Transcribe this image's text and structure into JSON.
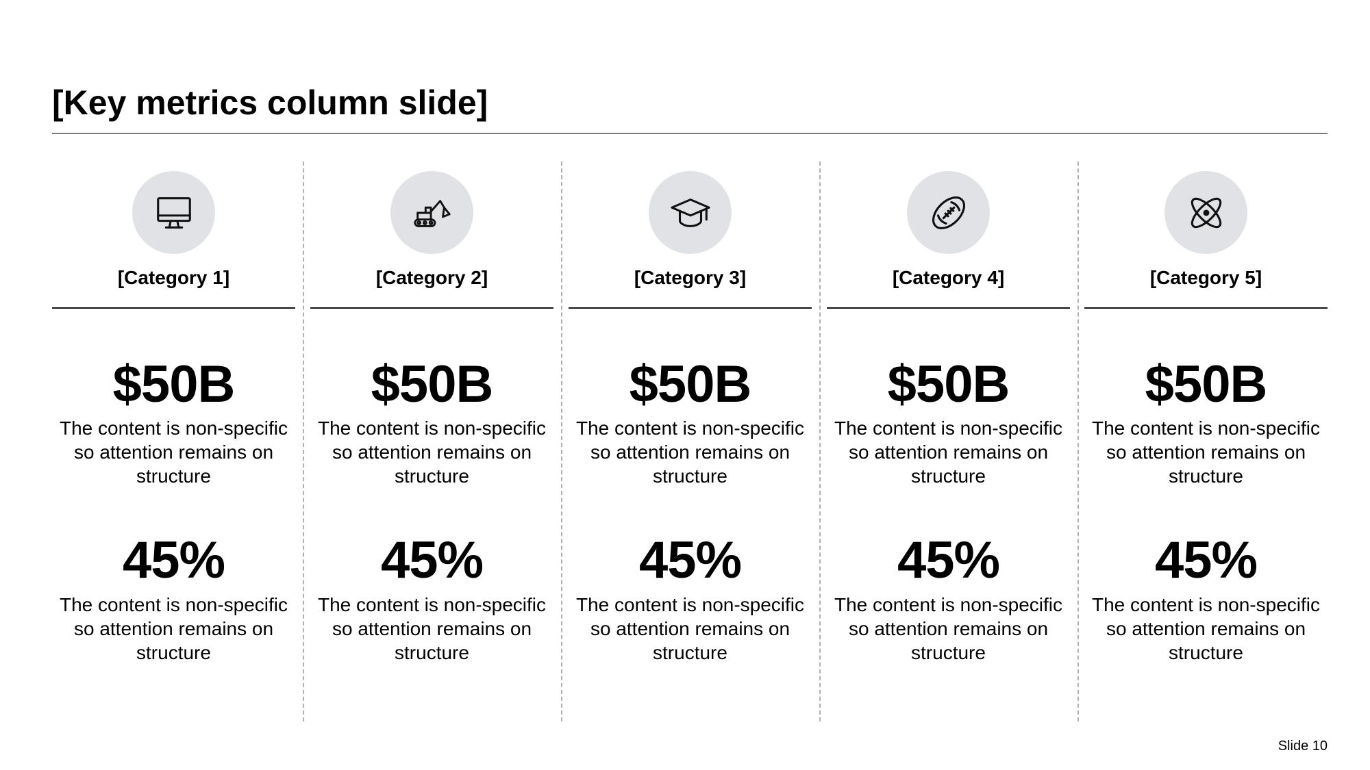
{
  "slide": {
    "title": "[Key metrics column slide]",
    "slide_number": "Slide 10"
  },
  "columns": [
    {
      "category": "[Category 1]",
      "icon": "monitor-icon",
      "metric1": {
        "value": "$50B",
        "description": "The content is non-specific so attention remains on structure"
      },
      "metric2": {
        "value": "45%",
        "description": "The content is non-specific so attention remains on structure"
      }
    },
    {
      "category": "[Category 2]",
      "icon": "excavator-icon",
      "metric1": {
        "value": "$50B",
        "description": "The content is non-specific so attention remains on structure"
      },
      "metric2": {
        "value": "45%",
        "description": "The content is non-specific so attention remains on structure"
      }
    },
    {
      "category": "[Category 3]",
      "icon": "graduation-cap-icon",
      "metric1": {
        "value": "$50B",
        "description": "The content is non-specific so attention remains on structure"
      },
      "metric2": {
        "value": "45%",
        "description": "The content is non-specific so attention remains on structure"
      }
    },
    {
      "category": "[Category 4]",
      "icon": "football-icon",
      "metric1": {
        "value": "$50B",
        "description": "The content is non-specific so attention remains on structure"
      },
      "metric2": {
        "value": "45%",
        "description": "The content is non-specific so attention remains on structure"
      }
    },
    {
      "category": "[Category 5]",
      "icon": "atom-icon",
      "metric1": {
        "value": "$50B",
        "description": "The content is non-specific so attention remains on structure"
      },
      "metric2": {
        "value": "45%",
        "description": "The content is non-specific so attention remains on structure"
      }
    }
  ],
  "colors": {
    "icon_circle": "#e1e2e6",
    "divider": "#b0b0b0",
    "text": "#000000"
  }
}
